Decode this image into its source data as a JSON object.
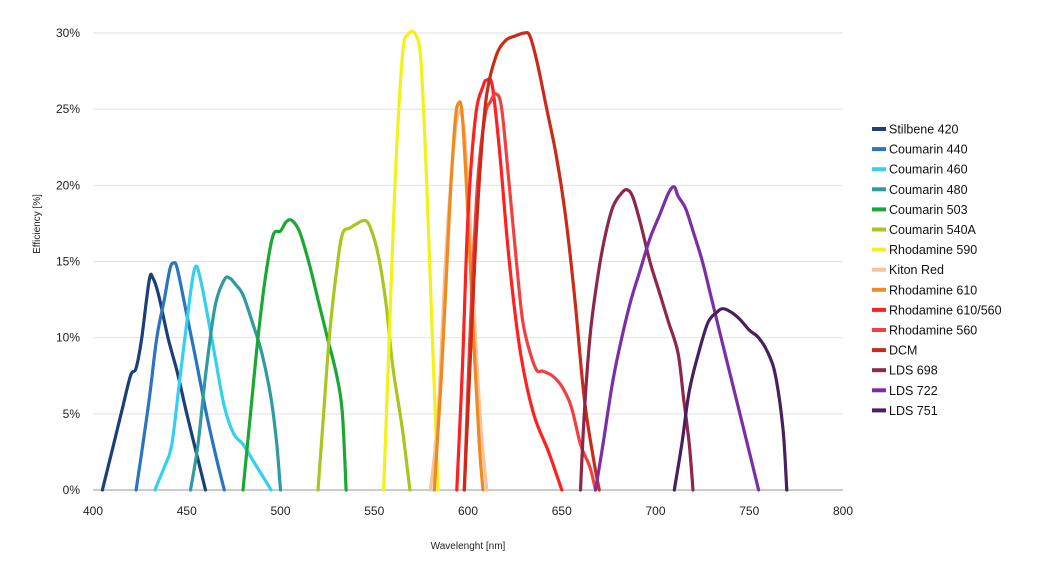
{
  "chart_data": {
    "type": "line",
    "title": "",
    "xlabel": "Wavelenght [nm]",
    "ylabel": "Efficiency [%]",
    "xlim": [
      400,
      800
    ],
    "ylim": [
      0,
      30
    ],
    "x_ticks": [
      400,
      450,
      500,
      550,
      600,
      650,
      700,
      750,
      800
    ],
    "x_tick_labels": [
      "400",
      "450",
      "500",
      "550",
      "600",
      "650",
      "700",
      "750",
      "800"
    ],
    "y_ticks": [
      0,
      5,
      10,
      15,
      20,
      25,
      30
    ],
    "y_tick_labels": [
      "0%",
      "5%",
      "10%",
      "15%",
      "20%",
      "25%",
      "30%"
    ],
    "grid": "horizontal",
    "legend_position": "right",
    "series": [
      {
        "name": "Stilbene 420",
        "color": "#1b3f7a",
        "points": [
          [
            405,
            0
          ],
          [
            410,
            2.5
          ],
          [
            415,
            5
          ],
          [
            420,
            7.5
          ],
          [
            423,
            8
          ],
          [
            426,
            10
          ],
          [
            430,
            13.8
          ],
          [
            432,
            13.9
          ],
          [
            435,
            12.8
          ],
          [
            440,
            10
          ],
          [
            445,
            7.7
          ],
          [
            450,
            5
          ],
          [
            455,
            2.5
          ],
          [
            460,
            0
          ]
        ]
      },
      {
        "name": "Coumarin 440",
        "color": "#2a74c2",
        "points": [
          [
            423,
            0
          ],
          [
            426,
            2.5
          ],
          [
            430,
            6
          ],
          [
            434,
            10
          ],
          [
            438,
            12.5
          ],
          [
            441,
            14.5
          ],
          [
            443,
            14.9
          ],
          [
            445,
            14.5
          ],
          [
            450,
            11.5
          ],
          [
            455,
            8.5
          ],
          [
            460,
            5.3
          ],
          [
            465,
            2.5
          ],
          [
            470,
            0
          ]
        ]
      },
      {
        "name": "Coumarin 460",
        "color": "#33d0f0",
        "points": [
          [
            433,
            0
          ],
          [
            438,
            1.5
          ],
          [
            442,
            3
          ],
          [
            446,
            7
          ],
          [
            450,
            11
          ],
          [
            453,
            13.8
          ],
          [
            455,
            14.7
          ],
          [
            457,
            14
          ],
          [
            460,
            12.2
          ],
          [
            465,
            8.8
          ],
          [
            470,
            5.5
          ],
          [
            475,
            3.7
          ],
          [
            480,
            3
          ],
          [
            485,
            2
          ],
          [
            490,
            1
          ],
          [
            495,
            0
          ]
        ]
      },
      {
        "name": "Coumarin 480",
        "color": "#2f9aa0",
        "points": [
          [
            452,
            0
          ],
          [
            456,
            3
          ],
          [
            460,
            7.5
          ],
          [
            465,
            12
          ],
          [
            470,
            13.8
          ],
          [
            473,
            13.9
          ],
          [
            476,
            13.5
          ],
          [
            480,
            12.8
          ],
          [
            485,
            11
          ],
          [
            490,
            9
          ],
          [
            495,
            6
          ],
          [
            498,
            3
          ],
          [
            500,
            0
          ]
        ]
      },
      {
        "name": "Coumarin 503",
        "color": "#1aa832",
        "points": [
          [
            480,
            0
          ],
          [
            484,
            5
          ],
          [
            488,
            10
          ],
          [
            492,
            14
          ],
          [
            496,
            16.7
          ],
          [
            500,
            17
          ],
          [
            503,
            17.6
          ],
          [
            506,
            17.7
          ],
          [
            510,
            17
          ],
          [
            515,
            15
          ],
          [
            520,
            12.5
          ],
          [
            525,
            10
          ],
          [
            530,
            7.5
          ],
          [
            533,
            5
          ],
          [
            535,
            0
          ]
        ]
      },
      {
        "name": "Coumarin 540A",
        "color": "#a8c61e",
        "points": [
          [
            520,
            0
          ],
          [
            523,
            5
          ],
          [
            526,
            10
          ],
          [
            530,
            14.5
          ],
          [
            533,
            16.8
          ],
          [
            537,
            17.2
          ],
          [
            541,
            17.5
          ],
          [
            545,
            17.7
          ],
          [
            548,
            17.2
          ],
          [
            552,
            15.5
          ],
          [
            556,
            12.5
          ],
          [
            560,
            8
          ],
          [
            565,
            4
          ],
          [
            569,
            0
          ]
        ]
      },
      {
        "name": "Rhodamine 590",
        "color": "#f2f21a",
        "points": [
          [
            555,
            0
          ],
          [
            558,
            10
          ],
          [
            561,
            20
          ],
          [
            565,
            28.5
          ],
          [
            568,
            29.9
          ],
          [
            572,
            29.9
          ],
          [
            575,
            28
          ],
          [
            578,
            20
          ],
          [
            581,
            10
          ],
          [
            584,
            0
          ]
        ]
      },
      {
        "name": "Kiton Red",
        "color": "#f6c39a",
        "points": [
          [
            580,
            0
          ],
          [
            584,
            5
          ],
          [
            588,
            15
          ],
          [
            592,
            22
          ],
          [
            595,
            24.8
          ],
          [
            598,
            23.5
          ],
          [
            601,
            18
          ],
          [
            604,
            10
          ],
          [
            607,
            4
          ],
          [
            610,
            0
          ]
        ]
      },
      {
        "name": "Rhodamine 610",
        "color": "#f08a1e",
        "points": [
          [
            582,
            0
          ],
          [
            586,
            8
          ],
          [
            590,
            18
          ],
          [
            593,
            24
          ],
          [
            595,
            25.4
          ],
          [
            597,
            24.5
          ],
          [
            600,
            18
          ],
          [
            603,
            10
          ],
          [
            606,
            3
          ],
          [
            608,
            0
          ]
        ]
      },
      {
        "name": "Rhodamine 610/560",
        "color": "#ff2020",
        "points": [
          [
            594,
            0
          ],
          [
            597,
            8
          ],
          [
            600,
            18
          ],
          [
            604,
            24.5
          ],
          [
            608,
            26.5
          ],
          [
            610,
            26.9
          ],
          [
            613,
            26.5
          ],
          [
            617,
            22
          ],
          [
            622,
            15
          ],
          [
            628,
            9
          ],
          [
            635,
            5
          ],
          [
            643,
            2.5
          ],
          [
            650,
            0
          ]
        ]
      },
      {
        "name": "Rhodamine 560",
        "color": "#f04040",
        "points": [
          [
            598,
            0
          ],
          [
            601,
            10
          ],
          [
            605,
            20
          ],
          [
            609,
            24.5
          ],
          [
            612,
            25.5
          ],
          [
            615,
            26
          ],
          [
            618,
            25
          ],
          [
            622,
            20
          ],
          [
            627,
            13.5
          ],
          [
            630,
            10.5
          ],
          [
            636,
            8
          ],
          [
            640,
            7.8
          ],
          [
            645,
            7.5
          ],
          [
            650,
            6.8
          ],
          [
            655,
            5.5
          ],
          [
            660,
            3
          ],
          [
            665,
            1.5
          ],
          [
            668,
            0
          ]
        ]
      },
      {
        "name": "DCM",
        "color": "#cc2a18",
        "points": [
          [
            598,
            0
          ],
          [
            601,
            8
          ],
          [
            604,
            16
          ],
          [
            607,
            22
          ],
          [
            610,
            26
          ],
          [
            615,
            28.5
          ],
          [
            620,
            29.5
          ],
          [
            625,
            29.8
          ],
          [
            630,
            30
          ],
          [
            633,
            29.8
          ],
          [
            637,
            28
          ],
          [
            642,
            25
          ],
          [
            647,
            22
          ],
          [
            652,
            18
          ],
          [
            657,
            12.5
          ],
          [
            662,
            6
          ],
          [
            667,
            2
          ],
          [
            670,
            0
          ]
        ]
      },
      {
        "name": "LDS 698",
        "color": "#8e2848",
        "points": [
          [
            660,
            0
          ],
          [
            662,
            5
          ],
          [
            665,
            10
          ],
          [
            668,
            13
          ],
          [
            672,
            16
          ],
          [
            677,
            18.5
          ],
          [
            682,
            19.5
          ],
          [
            685,
            19.7
          ],
          [
            688,
            19.2
          ],
          [
            692,
            17.5
          ],
          [
            697,
            15
          ],
          [
            702,
            13
          ],
          [
            707,
            11
          ],
          [
            712,
            9
          ],
          [
            715,
            6
          ],
          [
            718,
            3
          ],
          [
            720,
            0
          ]
        ]
      },
      {
        "name": "LDS 722",
        "color": "#7a2ea8",
        "points": [
          [
            668,
            0
          ],
          [
            672,
            3
          ],
          [
            677,
            7
          ],
          [
            682,
            10
          ],
          [
            687,
            12.5
          ],
          [
            692,
            14.5
          ],
          [
            697,
            16.5
          ],
          [
            702,
            18
          ],
          [
            707,
            19.5
          ],
          [
            710,
            19.9
          ],
          [
            712,
            19.3
          ],
          [
            716,
            18.5
          ],
          [
            720,
            17
          ],
          [
            725,
            15
          ],
          [
            730,
            12.5
          ],
          [
            735,
            10
          ],
          [
            740,
            7.5
          ],
          [
            745,
            5
          ],
          [
            750,
            2.5
          ],
          [
            755,
            0
          ]
        ]
      },
      {
        "name": "LDS 751",
        "color": "#4a1f5c",
        "points": [
          [
            710,
            0
          ],
          [
            714,
            3
          ],
          [
            718,
            6.5
          ],
          [
            723,
            9
          ],
          [
            728,
            11
          ],
          [
            733,
            11.7
          ],
          [
            736,
            11.9
          ],
          [
            740,
            11.7
          ],
          [
            745,
            11.2
          ],
          [
            750,
            10.5
          ],
          [
            755,
            10
          ],
          [
            760,
            9
          ],
          [
            764,
            7.5
          ],
          [
            768,
            4
          ],
          [
            770,
            0
          ]
        ]
      }
    ]
  }
}
